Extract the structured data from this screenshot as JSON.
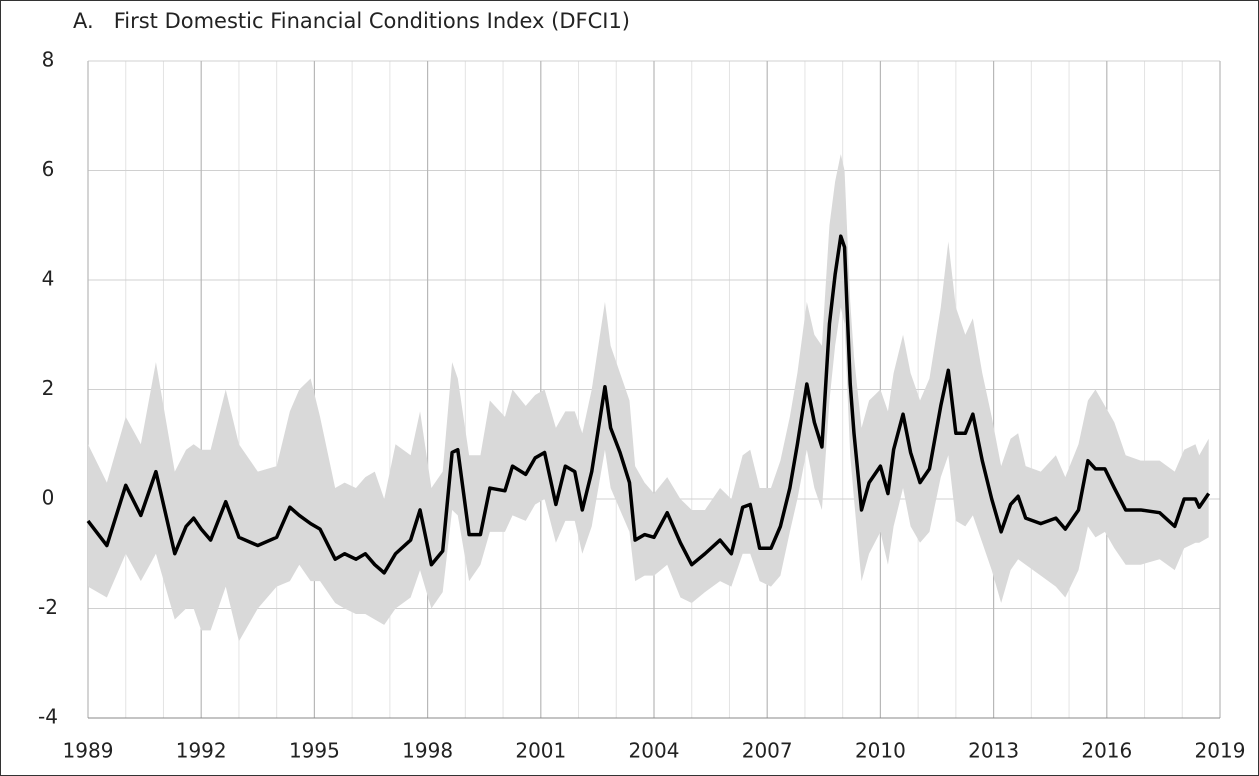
{
  "chart_data": {
    "type": "band-line",
    "title": "A.   First Domestic Financial Conditions Index (DFCI1)",
    "x": [
      1989.0,
      1989.5,
      1990.0,
      1990.4,
      1990.8,
      1991.3,
      1991.6,
      1991.8,
      1992.0,
      1992.25,
      1992.65,
      1993.0,
      1993.5,
      1994.0,
      1994.35,
      1994.6,
      1994.9,
      1995.15,
      1995.55,
      1995.8,
      1996.1,
      1996.35,
      1996.6,
      1996.85,
      1997.15,
      1997.55,
      1997.8,
      1998.1,
      1998.4,
      1998.65,
      1998.8,
      1999.1,
      1999.4,
      1999.65,
      2000.05,
      2000.25,
      2000.6,
      2000.85,
      2001.1,
      2001.4,
      2001.65,
      2001.9,
      2002.1,
      2002.35,
      2002.7,
      2002.85,
      2003.1,
      2003.35,
      2003.5,
      2003.75,
      2004.0,
      2004.35,
      2004.7,
      2005.0,
      2005.35,
      2005.75,
      2006.05,
      2006.35,
      2006.55,
      2006.8,
      2007.1,
      2007.35,
      2007.6,
      2007.8,
      2008.05,
      2008.25,
      2008.45,
      2008.65,
      2008.8,
      2008.95,
      2009.05,
      2009.2,
      2009.3,
      2009.5,
      2009.7,
      2010.0,
      2010.2,
      2010.35,
      2010.6,
      2010.8,
      2011.05,
      2011.3,
      2011.6,
      2011.8,
      2012.0,
      2012.25,
      2012.45,
      2012.7,
      2012.95,
      2013.2,
      2013.45,
      2013.65,
      2013.85,
      2014.25,
      2014.65,
      2014.9,
      2015.25,
      2015.5,
      2015.7,
      2015.95,
      2016.2,
      2016.5,
      2016.9,
      2017.4,
      2017.8,
      2018.05,
      2018.35,
      2018.45,
      2018.7
    ],
    "values": [
      -0.4,
      -0.85,
      0.25,
      -0.3,
      0.5,
      -1.0,
      -0.5,
      -0.35,
      -0.55,
      -0.75,
      -0.05,
      -0.7,
      -0.85,
      -0.7,
      -0.15,
      -0.3,
      -0.45,
      -0.55,
      -1.1,
      -1.0,
      -1.1,
      -1.0,
      -1.2,
      -1.35,
      -1.0,
      -0.75,
      -0.2,
      -1.2,
      -0.95,
      0.85,
      0.9,
      -0.65,
      -0.65,
      0.2,
      0.15,
      0.6,
      0.45,
      0.75,
      0.85,
      -0.1,
      0.6,
      0.5,
      -0.2,
      0.5,
      2.05,
      1.3,
      0.85,
      0.3,
      -0.75,
      -0.65,
      -0.7,
      -0.25,
      -0.8,
      -1.2,
      -1.0,
      -0.75,
      -1.0,
      -0.15,
      -0.1,
      -0.9,
      -0.9,
      -0.5,
      0.2,
      1.0,
      2.1,
      1.4,
      0.95,
      3.2,
      4.1,
      4.8,
      4.6,
      2.1,
      1.2,
      -0.2,
      0.3,
      0.6,
      0.1,
      0.9,
      1.55,
      0.85,
      0.3,
      0.55,
      1.7,
      2.35,
      1.2,
      1.2,
      1.55,
      0.7,
      0.0,
      -0.6,
      -0.1,
      0.05,
      -0.35,
      -0.45,
      -0.35,
      -0.55,
      -0.2,
      0.7,
      0.55,
      0.55,
      0.2,
      -0.2,
      -0.2,
      -0.25,
      -0.5,
      0.0,
      0.0,
      -0.15,
      0.1
    ],
    "color": "#000000",
    "band": {
      "color": "#d9d9d9",
      "upper": [
        1.0,
        0.3,
        1.5,
        1.0,
        2.5,
        0.5,
        0.9,
        1.0,
        0.9,
        0.9,
        2.0,
        1.0,
        0.5,
        0.6,
        1.6,
        2.0,
        2.2,
        1.5,
        0.2,
        0.3,
        0.2,
        0.4,
        0.5,
        0.0,
        1.0,
        0.8,
        1.6,
        0.2,
        0.5,
        2.5,
        2.2,
        0.8,
        0.8,
        1.8,
        1.5,
        2.0,
        1.7,
        1.9,
        2.0,
        1.3,
        1.6,
        1.6,
        1.2,
        2.0,
        3.6,
        2.8,
        2.3,
        1.8,
        0.6,
        0.3,
        0.1,
        0.4,
        0.0,
        -0.2,
        -0.2,
        0.2,
        0.0,
        0.8,
        0.9,
        0.2,
        0.2,
        0.7,
        1.5,
        2.3,
        3.6,
        3.0,
        2.8,
        5.0,
        5.8,
        6.3,
        6.0,
        3.6,
        2.6,
        1.3,
        1.8,
        2.0,
        1.6,
        2.3,
        3.0,
        2.3,
        1.8,
        2.2,
        3.5,
        4.7,
        3.5,
        3.0,
        3.3,
        2.3,
        1.5,
        0.6,
        1.1,
        1.2,
        0.6,
        0.5,
        0.8,
        0.4,
        1.0,
        1.8,
        2.0,
        1.7,
        1.4,
        0.8,
        0.7,
        0.7,
        0.5,
        0.9,
        1.0,
        0.8,
        1.1
      ],
      "lower": [
        -1.6,
        -1.8,
        -1.0,
        -1.5,
        -1.0,
        -2.2,
        -2.0,
        -2.0,
        -2.4,
        -2.4,
        -1.6,
        -2.6,
        -2.0,
        -1.6,
        -1.5,
        -1.2,
        -1.5,
        -1.5,
        -1.9,
        -2.0,
        -2.1,
        -2.1,
        -2.2,
        -2.3,
        -2.0,
        -1.8,
        -1.3,
        -2.0,
        -1.7,
        -0.2,
        -0.3,
        -1.5,
        -1.2,
        -0.6,
        -0.6,
        -0.3,
        -0.4,
        -0.1,
        0.0,
        -0.8,
        -0.4,
        -0.4,
        -1.0,
        -0.5,
        0.9,
        0.2,
        -0.2,
        -0.6,
        -1.5,
        -1.4,
        -1.4,
        -1.2,
        -1.8,
        -1.9,
        -1.7,
        -1.5,
        -1.6,
        -1.0,
        -1.0,
        -1.5,
        -1.6,
        -1.4,
        -0.6,
        0.0,
        0.9,
        0.2,
        -0.2,
        1.8,
        2.8,
        3.5,
        3.2,
        0.8,
        0.0,
        -1.5,
        -1.0,
        -0.6,
        -1.2,
        -0.5,
        0.2,
        -0.5,
        -0.8,
        -0.6,
        0.4,
        0.8,
        -0.4,
        -0.5,
        -0.3,
        -0.8,
        -1.3,
        -1.9,
        -1.3,
        -1.1,
        -1.2,
        -1.4,
        -1.6,
        -1.8,
        -1.3,
        -0.5,
        -0.7,
        -0.6,
        -0.9,
        -1.2,
        -1.2,
        -1.1,
        -1.3,
        -0.9,
        -0.8,
        -0.8,
        -0.7
      ]
    },
    "xlim": [
      1989,
      2019
    ],
    "xticks": [
      1989,
      1992,
      1995,
      1998,
      2001,
      2004,
      2007,
      2010,
      2013,
      2016,
      2019
    ],
    "x_minor_ticks": [
      1990,
      1991,
      1993,
      1994,
      1996,
      1997,
      1999,
      2000,
      2002,
      2003,
      2005,
      2006,
      2008,
      2009,
      2011,
      2012,
      2014,
      2015,
      2017,
      2018
    ],
    "ylim": [
      -4,
      8
    ],
    "yticks": [
      -4,
      -2,
      0,
      2,
      4,
      6,
      8
    ],
    "grid": true
  }
}
